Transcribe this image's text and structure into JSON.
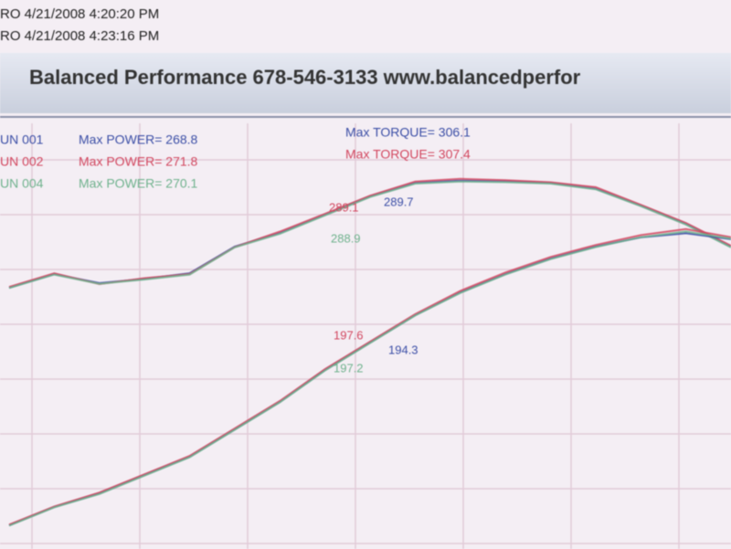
{
  "header": {
    "lines": [
      "RO  4/21/2008 4:20:20 PM",
      "RO  4/21/2008 4:23:16 PM"
    ],
    "title": "Balanced Performance 678-546-3133 www.balancedperfor"
  },
  "legend": [
    {
      "run": "UN 001",
      "power": "Max POWER= 268.8",
      "torque": "Max TORQUE= 306.1",
      "color": "#3b4ea6"
    },
    {
      "run": "UN 002",
      "power": "Max POWER= 271.8",
      "torque": "Max TORQUE= 307.4",
      "color": "#d2475f"
    },
    {
      "run": "UN 004",
      "power": "Max POWER= 270.1",
      "color": "#6fb28d"
    }
  ],
  "chart_data": {
    "type": "line",
    "ylim": [
      45,
      350
    ],
    "grid": true,
    "series": [
      {
        "color": "#3b4ea6",
        "values": [
          230.2,
          239.9,
          233.5,
          236.5,
          240.5,
          259.4,
          269.1,
          282.0,
          295.0,
          304.7,
          306.1,
          305.8,
          304.5,
          300.5,
          288.5,
          275.6,
          259.4
        ]
      },
      {
        "color": "#d2475f",
        "values": [
          230.8,
          240.5,
          232.8,
          237.0,
          239.9,
          259.0,
          270.0,
          282.6,
          295.5,
          305.5,
          307.4,
          306.5,
          305.0,
          301.5,
          289.0,
          276.2,
          260.0
        ]
      },
      {
        "color": "#6fb28d",
        "values": [
          230.0,
          239.5,
          233.0,
          236.0,
          239.5,
          258.8,
          268.5,
          281.5,
          294.5,
          304.0,
          305.5,
          305.0,
          304.0,
          300.0,
          288.0,
          275.0,
          258.8
        ]
      },
      {
        "color": "#3b4ea6",
        "values": [
          61.8,
          74.8,
          84.5,
          97.5,
          110.4,
          129.8,
          149.3,
          171.9,
          191.4,
          210.8,
          227.0,
          240.0,
          251.0,
          259.4,
          265.9,
          268.8,
          264.6
        ]
      },
      {
        "color": "#d2475f",
        "values": [
          62.3,
          75.2,
          85.0,
          98.0,
          111.0,
          130.5,
          150.0,
          172.5,
          192.0,
          211.5,
          228.0,
          241.0,
          252.0,
          260.5,
          267.5,
          271.8,
          266.0
        ]
      },
      {
        "color": "#6fb28d",
        "values": [
          61.5,
          74.5,
          84.0,
          97.0,
          110.0,
          129.5,
          149.0,
          171.5,
          191.0,
          210.5,
          226.5,
          239.5,
          250.5,
          259.0,
          266.0,
          270.1,
          265.0
        ]
      }
    ],
    "annotations": [
      {
        "text": "289.1",
        "color": "#d2475f"
      },
      {
        "text": "289.7",
        "color": "#3b4ea6"
      },
      {
        "text": "288.9",
        "color": "#6fb28d"
      },
      {
        "text": "197.6",
        "color": "#d2475f"
      },
      {
        "text": "194.3",
        "color": "#3b4ea6"
      },
      {
        "text": "197.2",
        "color": "#6fb28d"
      }
    ]
  }
}
